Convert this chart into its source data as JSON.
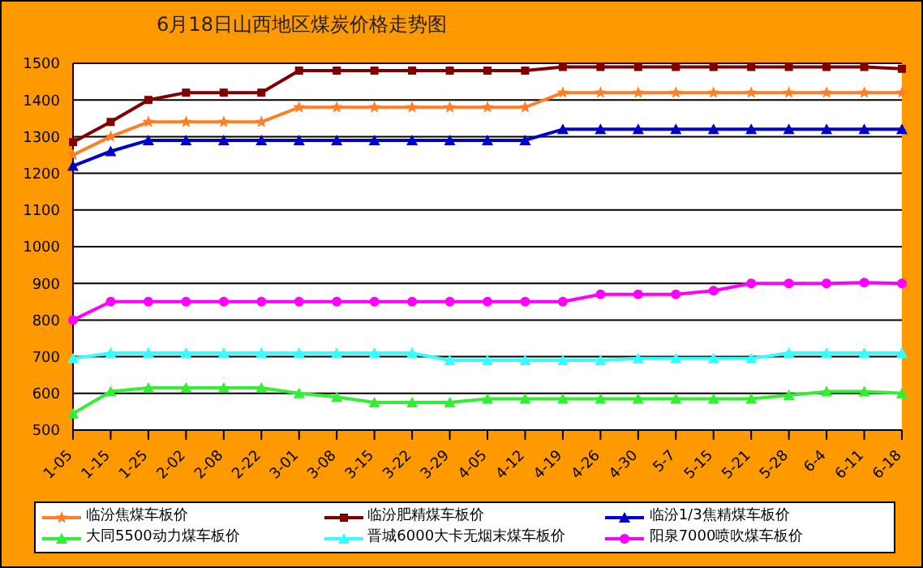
{
  "chart_data": {
    "type": "line",
    "title": "6月18日山西地区煤炭价格走势图",
    "categories": [
      "1-05",
      "1-15",
      "1-25",
      "2-02",
      "2-08",
      "2-22",
      "3-01",
      "3-08",
      "3-15",
      "3-22",
      "3-29",
      "4-05",
      "4-12",
      "4-19",
      "4-26",
      "4-30",
      "5-7",
      "5-15",
      "5-21",
      "5-28",
      "6-4",
      "6-11",
      "6-18"
    ],
    "series": [
      {
        "name": "临汾焦煤车板价",
        "color": "#ff7f27",
        "marker": "star",
        "values": [
          1250,
          1300,
          1340,
          1340,
          1340,
          1340,
          1380,
          1380,
          1380,
          1380,
          1380,
          1380,
          1380,
          1420,
          1420,
          1420,
          1420,
          1420,
          1420,
          1420,
          1420,
          1420,
          1420
        ]
      },
      {
        "name": "临汾肥精煤车板价",
        "color": "#800000",
        "marker": "square",
        "values": [
          1285,
          1340,
          1400,
          1420,
          1420,
          1420,
          1480,
          1480,
          1480,
          1480,
          1480,
          1480,
          1480,
          1490,
          1490,
          1490,
          1490,
          1490,
          1490,
          1490,
          1490,
          1490,
          1485
        ]
      },
      {
        "name": "临汾1/3焦精煤车板价",
        "color": "#0000cc",
        "marker": "triangle",
        "values": [
          1220,
          1260,
          1290,
          1290,
          1290,
          1290,
          1290,
          1290,
          1290,
          1290,
          1290,
          1290,
          1290,
          1320,
          1320,
          1320,
          1320,
          1320,
          1320,
          1320,
          1320,
          1320,
          1320
        ]
      },
      {
        "name": "大同5500动力煤车板价",
        "color": "#33ee33",
        "marker": "triangle",
        "values": [
          545,
          605,
          615,
          615,
          615,
          615,
          600,
          590,
          575,
          575,
          575,
          585,
          585,
          585,
          585,
          585,
          585,
          585,
          585,
          595,
          605,
          605,
          600
        ]
      },
      {
        "name": "晋城6000大卡无烟末煤车板价",
        "color": "#33ffff",
        "marker": "triangle",
        "values": [
          695,
          710,
          710,
          710,
          710,
          710,
          710,
          710,
          710,
          710,
          690,
          690,
          690,
          690,
          690,
          695,
          695,
          695,
          695,
          710,
          710,
          710,
          710
        ]
      },
      {
        "name": "阳泉7000喷吹煤车板价",
        "color": "#ff00ff",
        "marker": "circle",
        "values": [
          800,
          850,
          850,
          850,
          850,
          850,
          850,
          850,
          850,
          850,
          850,
          850,
          850,
          850,
          870,
          870,
          870,
          880,
          900,
          900,
          900,
          902,
          900
        ]
      }
    ],
    "ylim": [
      500,
      1500
    ],
    "yticks": [
      500,
      600,
      700,
      800,
      900,
      1000,
      1100,
      1200,
      1300,
      1400,
      1500
    ],
    "grid": "y",
    "legend": "bottom",
    "line_style": "solid"
  }
}
